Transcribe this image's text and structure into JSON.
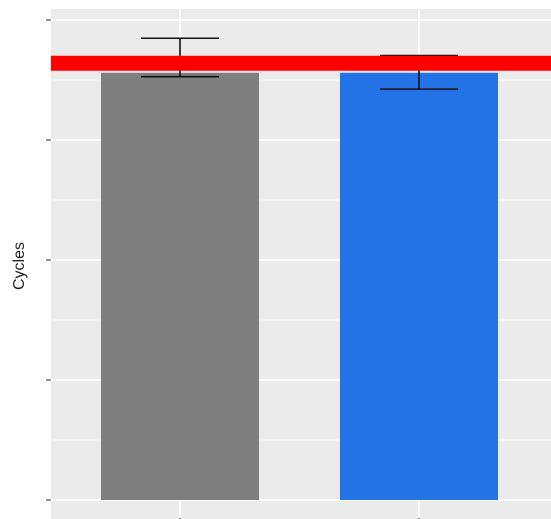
{
  "chart_data": {
    "type": "bar",
    "title": "",
    "xlabel": "",
    "ylabel": "Cycles",
    "categories": [
      "",
      ""
    ],
    "values": [
      0.89,
      0.89
    ],
    "error_bars": [
      {
        "low": 0.882,
        "high": 0.962
      },
      {
        "low": 0.856,
        "high": 0.926
      }
    ],
    "bar_colors": [
      "#7f7f7f",
      "#2472e8"
    ],
    "reference_line": {
      "value": 0.91,
      "color": "#ff0000"
    },
    "ylim": [
      0,
      1
    ],
    "grid": true,
    "tick_labels_visible": false,
    "background": "#ebebeb",
    "gridline_color": "#ffffff"
  }
}
